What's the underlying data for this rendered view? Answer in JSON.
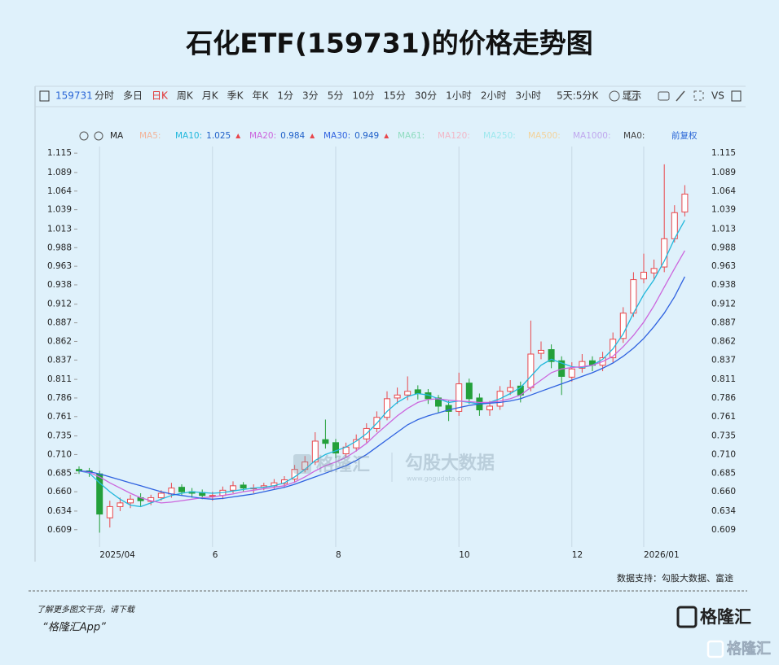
{
  "header": {
    "title": "石化ETF(159731)的价格走势图"
  },
  "toolbar": {
    "code": "159731",
    "active": "日K",
    "items": [
      "分时",
      "多日",
      "日K",
      "周K",
      "月K",
      "季K",
      "年K",
      "1分",
      "3分",
      "5分",
      "10分",
      "15分",
      "30分",
      "1小时",
      "2小时",
      "3小时",
      "5天:5分K",
      "显示"
    ],
    "compare": "VS"
  },
  "indicator_bar": {
    "name": "MA",
    "adjust": "前复权",
    "inactive": [
      {
        "name": "MA5:",
        "color": "#f2b49a"
      },
      {
        "name": "MA61:",
        "color": "#8fdcc0"
      },
      {
        "name": "MA120:",
        "color": "#f2b6c6"
      },
      {
        "name": "MA250:",
        "color": "#9ee8ee"
      },
      {
        "name": "MA500:",
        "color": "#f3d29a"
      },
      {
        "name": "MA1000:",
        "color": "#bfa6ee"
      },
      {
        "name": "MA0:",
        "color": "#444444"
      }
    ]
  },
  "chart_data": {
    "type": "candlestick",
    "categories": [
      null,
      null,
      "2025/04",
      null,
      null,
      null,
      null,
      null,
      null,
      null,
      null,
      null,
      null,
      "6",
      null,
      null,
      null,
      null,
      null,
      null,
      null,
      null,
      null,
      null,
      null,
      "8",
      null,
      null,
      null,
      null,
      null,
      null,
      null,
      null,
      null,
      null,
      null,
      "10",
      null,
      null,
      null,
      null,
      null,
      null,
      null,
      null,
      null,
      null,
      "12",
      null,
      null,
      null,
      null,
      null,
      null,
      "2026/01",
      null,
      null,
      null,
      null
    ],
    "open": [
      0.69,
      0.688,
      0.684,
      0.625,
      0.64,
      0.645,
      0.652,
      0.647,
      0.652,
      0.657,
      0.666,
      0.66,
      0.659,
      0.654,
      0.655,
      0.662,
      0.669,
      0.664,
      0.666,
      0.668,
      0.671,
      0.677,
      0.69,
      0.7,
      0.73,
      0.726,
      0.711,
      0.719,
      0.731,
      0.745,
      0.76,
      0.786,
      0.79,
      0.797,
      0.793,
      0.786,
      0.776,
      0.768,
      0.806,
      0.786,
      0.77,
      0.775,
      0.795,
      0.802,
      0.8,
      0.846,
      0.851,
      0.836,
      0.814,
      0.826,
      0.836,
      0.83,
      0.84,
      0.866,
      0.9,
      0.946,
      0.954,
      0.962,
      1.0,
      1.036
    ],
    "high": [
      0.694,
      0.692,
      0.688,
      0.648,
      0.652,
      0.656,
      0.658,
      0.656,
      0.662,
      0.672,
      0.67,
      0.665,
      0.663,
      0.66,
      0.667,
      0.674,
      0.673,
      0.67,
      0.672,
      0.677,
      0.681,
      0.696,
      0.708,
      0.74,
      0.757,
      0.731,
      0.726,
      0.737,
      0.752,
      0.768,
      0.795,
      0.8,
      0.815,
      0.803,
      0.798,
      0.79,
      0.782,
      0.82,
      0.812,
      0.792,
      0.782,
      0.802,
      0.81,
      0.808,
      0.89,
      0.862,
      0.858,
      0.842,
      0.834,
      0.845,
      0.842,
      0.848,
      0.874,
      0.908,
      0.955,
      0.98,
      0.972,
      1.1,
      1.045,
      1.072
    ],
    "low": [
      0.684,
      0.68,
      0.605,
      0.612,
      0.634,
      0.638,
      0.64,
      0.642,
      0.648,
      0.652,
      0.655,
      0.652,
      0.65,
      0.648,
      0.65,
      0.658,
      0.66,
      0.658,
      0.662,
      0.664,
      0.666,
      0.672,
      0.686,
      0.696,
      0.718,
      0.705,
      0.706,
      0.714,
      0.726,
      0.74,
      0.756,
      0.778,
      0.783,
      0.784,
      0.778,
      0.766,
      0.755,
      0.762,
      0.778,
      0.762,
      0.762,
      0.77,
      0.79,
      0.78,
      0.795,
      0.838,
      0.826,
      0.79,
      0.808,
      0.82,
      0.822,
      0.822,
      0.834,
      0.86,
      0.895,
      0.94,
      0.945,
      0.955,
      0.995,
      1.03
    ],
    "close": [
      0.688,
      0.686,
      0.63,
      0.64,
      0.645,
      0.65,
      0.648,
      0.652,
      0.658,
      0.665,
      0.66,
      0.658,
      0.655,
      0.655,
      0.662,
      0.668,
      0.665,
      0.665,
      0.668,
      0.672,
      0.676,
      0.69,
      0.7,
      0.728,
      0.725,
      0.712,
      0.72,
      0.73,
      0.745,
      0.76,
      0.785,
      0.79,
      0.795,
      0.792,
      0.785,
      0.775,
      0.768,
      0.805,
      0.785,
      0.77,
      0.775,
      0.795,
      0.8,
      0.79,
      0.845,
      0.85,
      0.835,
      0.815,
      0.825,
      0.835,
      0.83,
      0.84,
      0.865,
      0.9,
      0.945,
      0.955,
      0.96,
      1.0,
      1.035,
      1.06
    ],
    "up_color": "#e8474c",
    "down_color": "#23a03a",
    "series": [
      {
        "name": "MA10:",
        "color": "#22b8dc",
        "latest": 1.025,
        "values": [
          0.688,
          0.685,
          0.672,
          0.66,
          0.65,
          0.642,
          0.64,
          0.645,
          0.65,
          0.655,
          0.658,
          0.66,
          0.659,
          0.658,
          0.659,
          0.661,
          0.663,
          0.665,
          0.666,
          0.668,
          0.672,
          0.68,
          0.69,
          0.702,
          0.71,
          0.715,
          0.72,
          0.728,
          0.738,
          0.752,
          0.768,
          0.78,
          0.788,
          0.792,
          0.79,
          0.785,
          0.78,
          0.782,
          0.78,
          0.778,
          0.78,
          0.785,
          0.792,
          0.8,
          0.815,
          0.83,
          0.838,
          0.833,
          0.828,
          0.827,
          0.83,
          0.838,
          0.852,
          0.872,
          0.9,
          0.925,
          0.945,
          0.97,
          1.0,
          1.025
        ]
      },
      {
        "name": "MA20:",
        "color": "#cc66dd",
        "latest": 0.984,
        "values": [
          0.688,
          0.686,
          0.68,
          0.672,
          0.665,
          0.658,
          0.652,
          0.648,
          0.645,
          0.646,
          0.648,
          0.65,
          0.652,
          0.653,
          0.655,
          0.657,
          0.66,
          0.662,
          0.664,
          0.666,
          0.668,
          0.673,
          0.68,
          0.688,
          0.695,
          0.7,
          0.706,
          0.715,
          0.725,
          0.738,
          0.75,
          0.762,
          0.772,
          0.78,
          0.784,
          0.785,
          0.783,
          0.782,
          0.781,
          0.78,
          0.78,
          0.782,
          0.785,
          0.79,
          0.8,
          0.81,
          0.82,
          0.825,
          0.827,
          0.828,
          0.83,
          0.835,
          0.842,
          0.855,
          0.87,
          0.888,
          0.91,
          0.935,
          0.96,
          0.984
        ]
      },
      {
        "name": "MA30:",
        "color": "#2f62e0",
        "latest": 0.949,
        "values": [
          0.688,
          0.687,
          0.684,
          0.68,
          0.676,
          0.672,
          0.668,
          0.664,
          0.66,
          0.657,
          0.655,
          0.653,
          0.651,
          0.65,
          0.651,
          0.653,
          0.655,
          0.657,
          0.66,
          0.663,
          0.666,
          0.67,
          0.675,
          0.68,
          0.685,
          0.69,
          0.695,
          0.702,
          0.71,
          0.72,
          0.73,
          0.74,
          0.75,
          0.757,
          0.762,
          0.766,
          0.77,
          0.773,
          0.776,
          0.778,
          0.779,
          0.78,
          0.782,
          0.785,
          0.79,
          0.795,
          0.8,
          0.805,
          0.81,
          0.815,
          0.82,
          0.826,
          0.833,
          0.842,
          0.853,
          0.866,
          0.882,
          0.9,
          0.922,
          0.949
        ]
      }
    ],
    "ylim": [
      0.6,
      1.125
    ],
    "yticks": [
      1.115,
      1.089,
      1.064,
      1.039,
      1.013,
      0.988,
      0.963,
      0.938,
      0.912,
      0.887,
      0.862,
      0.837,
      0.811,
      0.786,
      0.761,
      0.735,
      {
        "value": 0.71,
        "label": "0.710"
      },
      0.685,
      {
        "value": 0.66,
        "label": "0.660"
      },
      0.634,
      0.609
    ],
    "xgrid": true
  },
  "watermark": {
    "brand": "格隆汇",
    "name": "勾股大数据",
    "url": "www.gogudata.com"
  },
  "footer": {
    "source": "数据支持：勾股大数据、富途",
    "cta": "了解更多图文干货，请下载",
    "app": "“格隆汇App”",
    "logo": "格隆汇",
    "corner": "格隆汇"
  }
}
